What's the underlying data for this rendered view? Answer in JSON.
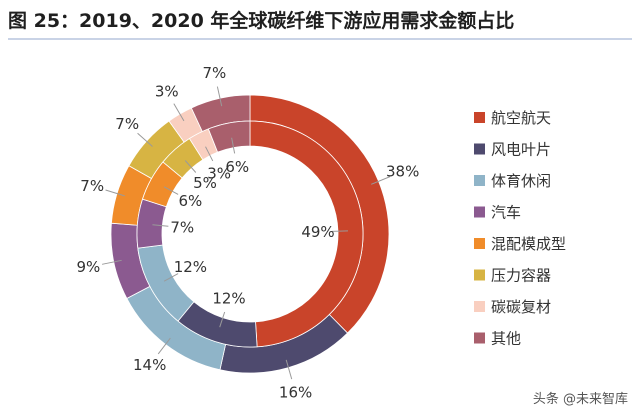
{
  "title": "图 25：2019、2020 年全球碳纤维下游应用需求金额占比",
  "watermark": "头条 @未来智库",
  "chart_data": {
    "type": "pie",
    "title": "图 25：2019、2020 年全球碳纤维下游应用需求金额占比",
    "legend_position": "right",
    "categories": [
      "航空航天",
      "风电叶片",
      "体育休闲",
      "汽车",
      "混配模成型",
      "压力容器",
      "碳碳复材",
      "其他"
    ],
    "colors": [
      "#c9442a",
      "#4e4a6e",
      "#8fb4c8",
      "#8b5a90",
      "#f08c2a",
      "#d7b443",
      "#f9cfc0",
      "#a95f6c"
    ],
    "series": [
      {
        "values": [
          38,
          16,
          14,
          9,
          7,
          7,
          3,
          7
        ],
        "labels": [
          "38%",
          "16%",
          "14%",
          "9%",
          "7%",
          "7%",
          "3%",
          "7%"
        ]
      },
      {
        "values": [
          49,
          12,
          12,
          7,
          6,
          5,
          3,
          6
        ],
        "labels": [
          "49%",
          "12%",
          "12%",
          "7%",
          "6%",
          "5%",
          "3%",
          "6%"
        ]
      }
    ]
  }
}
